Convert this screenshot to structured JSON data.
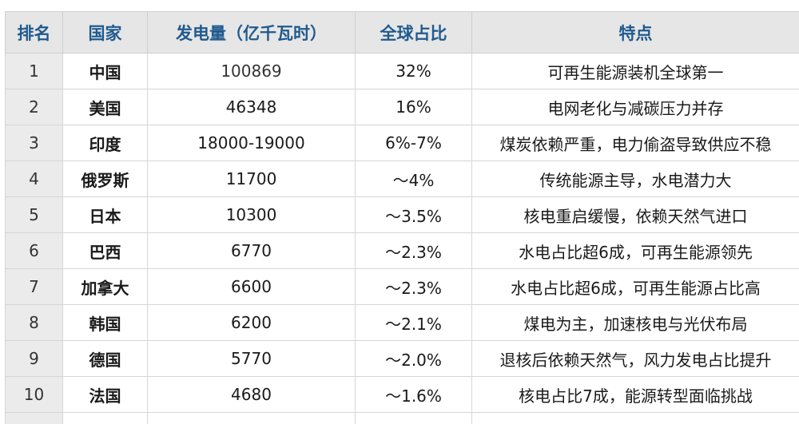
{
  "headers": {
    "rank": "排名",
    "country": "国家",
    "generation": "发电量（亿千瓦时）",
    "share": "全球占比",
    "feature": "特点"
  },
  "rows": [
    {
      "rank": "1",
      "country": "中国",
      "generation": "100869",
      "share": "32%",
      "feature": "可再生能源装机全球第一"
    },
    {
      "rank": "2",
      "country": "美国",
      "generation": "46348",
      "share": "16%",
      "feature": "电网老化与减碳压力并存"
    },
    {
      "rank": "3",
      "country": "印度",
      "generation": "18000-19000",
      "share": "6%-7%",
      "feature": "煤炭依赖严重，电力偷盗导致供应不稳"
    },
    {
      "rank": "4",
      "country": "俄罗斯",
      "generation": "11700",
      "share": "～4%",
      "feature": "传统能源主导，水电潜力大"
    },
    {
      "rank": "5",
      "country": "日本",
      "generation": "10300",
      "share": "～3.5%",
      "feature": "核电重启缓慢，依赖天然气进口"
    },
    {
      "rank": "6",
      "country": "巴西",
      "generation": "6770",
      "share": "～2.3%",
      "feature": "水电占比超6成，可再生能源领先"
    },
    {
      "rank": "7",
      "country": "加拿大",
      "generation": "6600",
      "share": "～2.3%",
      "feature": "水电占比超6成，可再生能源占比高"
    },
    {
      "rank": "8",
      "country": "韩国",
      "generation": "6200",
      "share": "～2.1%",
      "feature": "煤电为主，加速核电与光伏布局"
    },
    {
      "rank": "9",
      "country": "德国",
      "generation": "5770",
      "share": "～2.0%",
      "feature": "退核后依赖天然气，风力发电占比提升"
    },
    {
      "rank": "10",
      "country": "法国",
      "generation": "4680",
      "share": "～1.6%",
      "feature": "核电占比7成，能源转型面临挑战"
    }
  ]
}
